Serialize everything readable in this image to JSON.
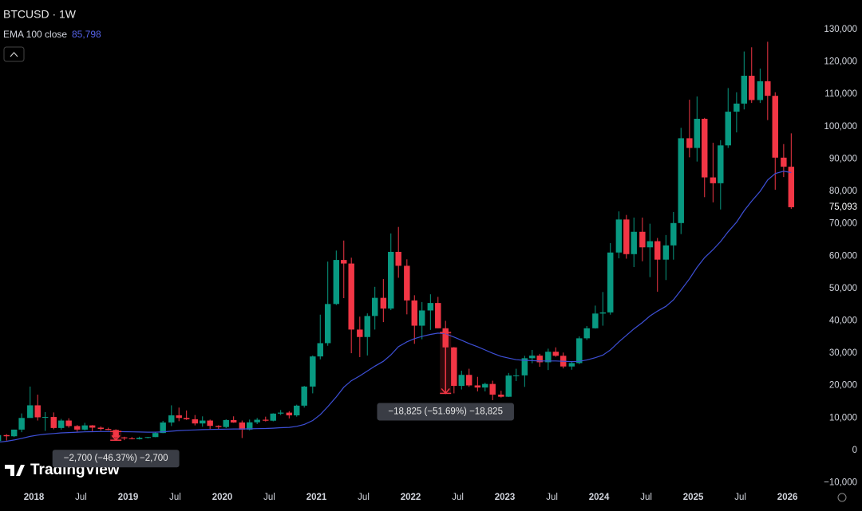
{
  "chart_data": {
    "type": "candlestick",
    "title": "BTCUSD · 1W",
    "brand": "TradingView",
    "xlim": [
      2017.64,
      2026.3
    ],
    "ylim": [
      -11600,
      139100
    ],
    "xticks": [
      {
        "value": 2018,
        "label": "2018"
      },
      {
        "value": 2018.5,
        "label": "Jul"
      },
      {
        "value": 2019,
        "label": "2019"
      },
      {
        "value": 2019.5,
        "label": "Jul"
      },
      {
        "value": 2020,
        "label": "2020"
      },
      {
        "value": 2020.5,
        "label": "Jul"
      },
      {
        "value": 2021,
        "label": "2021"
      },
      {
        "value": 2021.5,
        "label": "Jul"
      },
      {
        "value": 2022,
        "label": "2022"
      },
      {
        "value": 2022.5,
        "label": "Jul"
      },
      {
        "value": 2023,
        "label": "2023"
      },
      {
        "value": 2023.5,
        "label": "Jul"
      },
      {
        "value": 2024,
        "label": "2024"
      },
      {
        "value": 2024.5,
        "label": "Jul"
      },
      {
        "value": 2025,
        "label": "2025"
      },
      {
        "value": 2025.5,
        "label": "Jul"
      },
      {
        "value": 2026,
        "label": "2026"
      }
    ],
    "yticks": [
      {
        "value": 130000,
        "label": "130,000"
      },
      {
        "value": 120000,
        "label": "120,000"
      },
      {
        "value": 110000,
        "label": "110,000"
      },
      {
        "value": 100000,
        "label": "100,000"
      },
      {
        "value": 90000,
        "label": "90,000"
      },
      {
        "value": 80000,
        "label": "80,000"
      },
      {
        "value": 70000,
        "label": "70,000"
      },
      {
        "value": 60000,
        "label": "60,000"
      },
      {
        "value": 50000,
        "label": "50,000"
      },
      {
        "value": 40000,
        "label": "40,000"
      },
      {
        "value": 30000,
        "label": "30,000"
      },
      {
        "value": 20000,
        "label": "20,000"
      },
      {
        "value": 10000,
        "label": "10,000"
      },
      0,
      {
        "value": -10000,
        "label": "−10,000"
      }
    ],
    "grid": false,
    "up_color": "#089981",
    "down_color": "#f23645",
    "x": [
      2017.62,
      2017.71,
      2017.79,
      2017.87,
      2017.96,
      2018.04,
      2018.12,
      2018.21,
      2018.29,
      2018.37,
      2018.46,
      2018.54,
      2018.62,
      2018.71,
      2018.79,
      2018.87,
      2018.96,
      2019.04,
      2019.12,
      2019.21,
      2019.29,
      2019.37,
      2019.46,
      2019.54,
      2019.62,
      2019.71,
      2019.79,
      2019.87,
      2019.96,
      2020.04,
      2020.12,
      2020.21,
      2020.29,
      2020.37,
      2020.46,
      2020.54,
      2020.62,
      2020.71,
      2020.79,
      2020.87,
      2020.96,
      2021.04,
      2021.12,
      2021.21,
      2021.29,
      2021.37,
      2021.46,
      2021.54,
      2021.62,
      2021.71,
      2021.79,
      2021.87,
      2021.96,
      2022.04,
      2022.12,
      2022.21,
      2022.29,
      2022.37,
      2022.46,
      2022.54,
      2022.62,
      2022.71,
      2022.79,
      2022.87,
      2022.96,
      2023.04,
      2023.12,
      2023.21,
      2023.29,
      2023.37,
      2023.46,
      2023.54,
      2023.62,
      2023.71,
      2023.79,
      2023.87,
      2023.96,
      2024.04,
      2024.12,
      2024.21,
      2024.29,
      2024.37,
      2024.46,
      2024.54,
      2024.62,
      2024.71,
      2024.79,
      2024.87,
      2024.96,
      2025.04,
      2025.12,
      2025.21,
      2025.29,
      2025.37,
      2025.46,
      2025.54,
      2025.62,
      2025.71,
      2025.79,
      2025.87,
      2025.96,
      2026.04
    ],
    "open": [
      2870,
      4700,
      4350,
      6400,
      10000,
      13900,
      10200,
      10300,
      6900,
      9200,
      7500,
      6400,
      7700,
      7000,
      6600,
      6300,
      4000,
      3700,
      3450,
      3850,
      4100,
      5350,
      8600,
      10800,
      10000,
      9600,
      8300,
      9200,
      7550,
      7200,
      9350,
      8600,
      6400,
      8650,
      9450,
      9150,
      11350,
      11650,
      10800,
      13800,
      19700,
      29000,
      33100,
      45200,
      58800,
      57700,
      37300,
      35000,
      41500,
      47100,
      43800,
      61300,
      57000,
      46300,
      38500,
      43200,
      45500,
      37700,
      31800,
      19900,
      23300,
      20050,
      19400,
      20500,
      17200,
      16550,
      23100,
      23150,
      28450,
      29250,
      27200,
      30450,
      29200,
      25900,
      26950,
      34600,
      37700,
      42250,
      42600,
      61100,
      71300,
      60600,
      67500,
      62700,
      64600,
      58900,
      63300,
      70200,
      96400,
      93400,
      102400,
      84300,
      82500,
      94200,
      104600,
      107100,
      115700,
      108200,
      114000,
      109500,
      90400,
      87600
    ],
    "high": [
      4750,
      5000,
      6400,
      11400,
      19700,
      17200,
      11800,
      11700,
      9700,
      9900,
      7800,
      8500,
      7800,
      7400,
      7000,
      6500,
      4200,
      4100,
      4200,
      4150,
      5600,
      9100,
      13900,
      13200,
      12300,
      10900,
      10500,
      9500,
      7750,
      9600,
      10500,
      9200,
      9500,
      10000,
      10400,
      11450,
      12450,
      12100,
      14100,
      19900,
      29300,
      41900,
      58300,
      61700,
      64800,
      59500,
      41300,
      42300,
      50500,
      52900,
      67000,
      69000,
      59000,
      47900,
      45800,
      48200,
      47400,
      40000,
      31900,
      24600,
      25200,
      22700,
      20900,
      21500,
      18400,
      23900,
      25200,
      29200,
      31000,
      29800,
      31400,
      31800,
      30200,
      27500,
      35200,
      38400,
      44700,
      48900,
      64000,
      73800,
      72700,
      71900,
      71900,
      70000,
      65600,
      66500,
      73600,
      99600,
      108300,
      109300,
      102700,
      95000,
      95800,
      111900,
      110600,
      123200,
      124500,
      117900,
      126200,
      110600,
      94600,
      97900
    ],
    "low": [
      2700,
      3000,
      4100,
      5600,
      10900,
      9200,
      6000,
      6500,
      6400,
      7000,
      5800,
      6100,
      5900,
      6100,
      6200,
      3500,
      3150,
      3400,
      3350,
      3700,
      4050,
      5300,
      7500,
      9000,
      9400,
      7700,
      7300,
      6500,
      6400,
      6850,
      8500,
      3800,
      6150,
      8100,
      8900,
      8950,
      10900,
      9850,
      10400,
      13200,
      17600,
      28100,
      32300,
      44900,
      47000,
      30000,
      28800,
      29300,
      37300,
      39600,
      43300,
      53300,
      42000,
      32900,
      34300,
      37200,
      37700,
      26700,
      17600,
      18800,
      19600,
      18200,
      18200,
      15500,
      16300,
      16500,
      21400,
      19600,
      26900,
      25800,
      24800,
      28900,
      25300,
      24900,
      26600,
      34100,
      37600,
      38500,
      41900,
      59300,
      59200,
      56600,
      58400,
      53500,
      49000,
      52600,
      58900,
      66800,
      90500,
      89200,
      78200,
      76600,
      74400,
      93400,
      98200,
      105300,
      107300,
      107300,
      102000,
      80500,
      84400,
      74600
    ],
    "close": [
      4700,
      4350,
      6400,
      10000,
      13900,
      10200,
      10300,
      6900,
      9200,
      7500,
      6400,
      7700,
      7000,
      6600,
      6300,
      4000,
      3700,
      3450,
      3850,
      4100,
      5350,
      8600,
      10800,
      10000,
      9600,
      8300,
      9200,
      7550,
      7200,
      9350,
      8600,
      6400,
      8650,
      9450,
      9150,
      11350,
      11650,
      10800,
      13800,
      19700,
      29000,
      33100,
      45200,
      58800,
      57700,
      37300,
      35000,
      41500,
      47100,
      43800,
      61300,
      57000,
      46300,
      38500,
      43200,
      45500,
      37700,
      31800,
      19900,
      23300,
      20050,
      19400,
      20500,
      17200,
      16550,
      23100,
      23150,
      28450,
      29250,
      27200,
      30450,
      29200,
      25900,
      26950,
      34600,
      37700,
      42250,
      42600,
      61100,
      71300,
      60600,
      67500,
      62700,
      64600,
      58900,
      63300,
      70200,
      96400,
      93400,
      102400,
      84300,
      82500,
      94200,
      104600,
      107100,
      115700,
      108200,
      114000,
      109500,
      90400,
      87600,
      75093
    ],
    "last_price": {
      "value": 75093,
      "label": "75,093"
    },
    "series": [
      {
        "name": "EMA 100 close",
        "color": "#3d4fd6",
        "legend_value": {
          "value": 85798,
          "label": "85,798"
        },
        "values": [
          2500,
          2800,
          3200,
          3700,
          4300,
          4700,
          5000,
          5200,
          5400,
          5500,
          5600,
          5700,
          5750,
          5800,
          5800,
          5800,
          5750,
          5700,
          5650,
          5600,
          5600,
          5700,
          5900,
          6100,
          6200,
          6300,
          6400,
          6450,
          6500,
          6550,
          6600,
          6600,
          6650,
          6700,
          6750,
          6850,
          7000,
          7100,
          7400,
          8000,
          9200,
          11000,
          13500,
          16500,
          19500,
          21500,
          23000,
          24500,
          26000,
          27500,
          29500,
          32000,
          33500,
          34500,
          35200,
          35800,
          36200,
          36000,
          35000,
          34000,
          33000,
          32000,
          31000,
          30000,
          29000,
          28500,
          28000,
          27800,
          27700,
          27600,
          27600,
          27600,
          27500,
          27400,
          27500,
          27900,
          28600,
          29400,
          31000,
          33500,
          35500,
          37500,
          39500,
          41500,
          43000,
          44500,
          46500,
          49500,
          53000,
          56500,
          59500,
          62000,
          64500,
          67500,
          70500,
          74000,
          77000,
          80000,
          83500,
          85500,
          86200,
          85798
        ]
      }
    ],
    "measures": [
      {
        "text": "−18,825 (−51.69%) −18,825",
        "x": 2022.37,
        "from": 36420,
        "to": 17595
      },
      {
        "text": "−2,700 (−46.37%) −2,700",
        "x": 2018.87,
        "from": 5823,
        "to": 3123
      }
    ]
  }
}
